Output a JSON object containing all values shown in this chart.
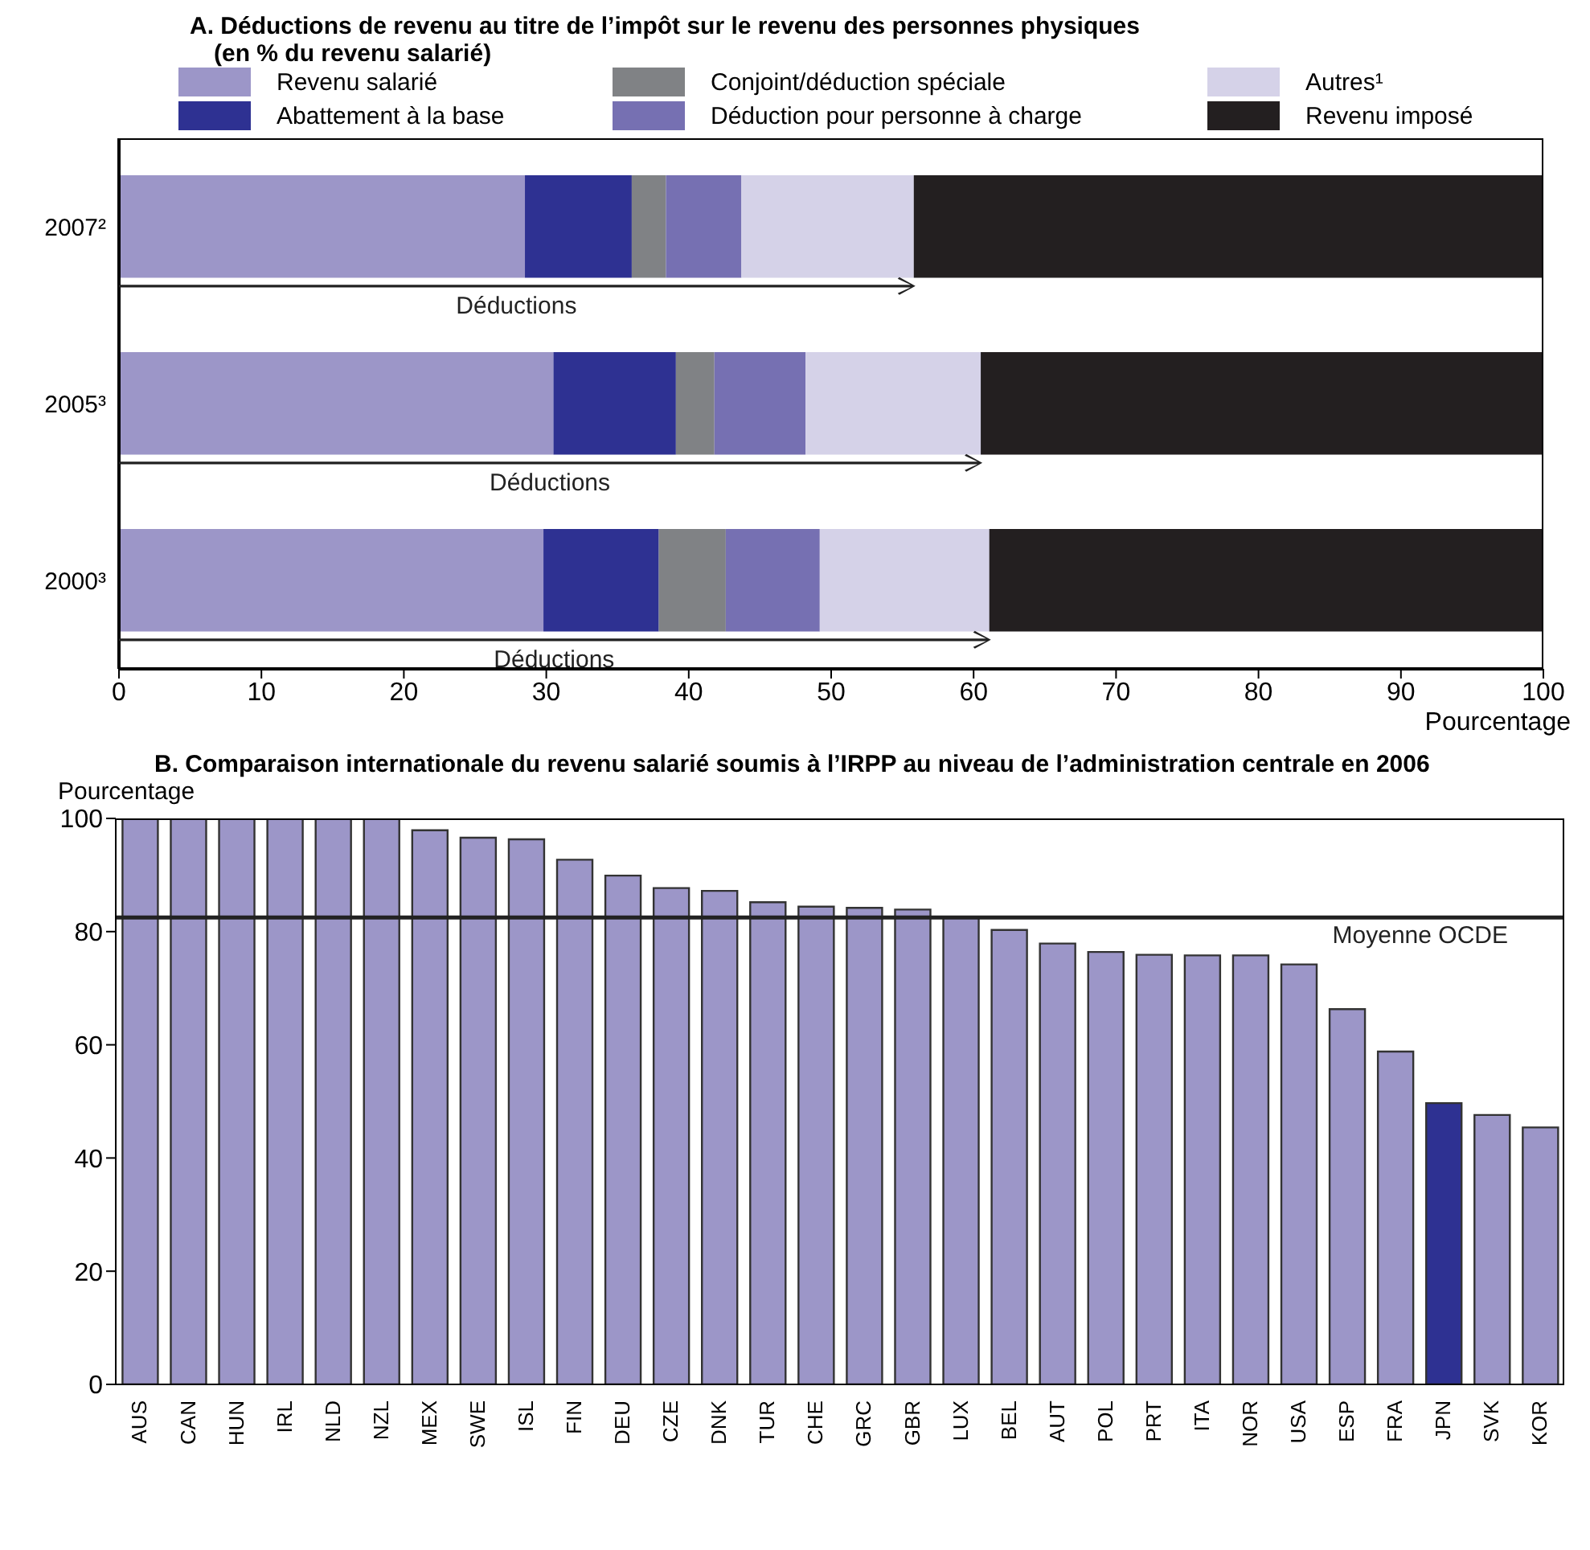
{
  "chart_data": [
    {
      "type": "bar",
      "orientation": "horizontal",
      "stacked": true,
      "title": "A. Déductions de revenu au titre de l’impôt sur le revenu des personnes physiques",
      "subtitle": "(en % du revenu salarié)",
      "categories": [
        "2007²",
        "2005³",
        "2000³"
      ],
      "series": [
        {
          "name": "Revenu salarié",
          "color": "#9c96c8",
          "values": [
            28.5,
            30.5,
            29.8
          ]
        },
        {
          "name": "Abattement à la base",
          "color": "#2e3192",
          "values": [
            7.5,
            8.6,
            8.1
          ]
        },
        {
          "name": "Conjoint/déduction spéciale",
          "color": "#808285",
          "values": [
            2.4,
            2.7,
            4.7
          ]
        },
        {
          "name": "Déduction pour personne à charge",
          "color": "#7670b2",
          "values": [
            5.3,
            6.4,
            6.6
          ]
        },
        {
          "name": "Autres¹",
          "color": "#d5d2e8",
          "values": [
            12.1,
            12.3,
            11.9
          ]
        },
        {
          "name": "Revenu imposé",
          "color": "#231f20",
          "values": [
            44.2,
            39.5,
            38.9
          ]
        }
      ],
      "xlim": [
        0,
        100
      ],
      "xticks": [
        0,
        10,
        20,
        30,
        40,
        50,
        60,
        70,
        80,
        90,
        100
      ],
      "xlabel": "Pourcentage",
      "legend": "top",
      "annotations": [
        "Déductions",
        "Déductions",
        "Déductions"
      ]
    },
    {
      "type": "bar",
      "title": "B. Comparaison internationale du revenu salarié soumis à l’IRPP au niveau de l’administration centrale en 2006",
      "ylabel": "Pourcentage",
      "categories": [
        "AUS",
        "CAN",
        "HUN",
        "IRL",
        "NLD",
        "NZL",
        "MEX",
        "SWE",
        "ISL",
        "FIN",
        "DEU",
        "CZE",
        "DNK",
        "TUR",
        "CHE",
        "GRC",
        "GBR",
        "LUX",
        "BEL",
        "AUT",
        "POL",
        "PRT",
        "ITA",
        "NOR",
        "USA",
        "ESP",
        "FRA",
        "JPN",
        "SVK",
        "KOR"
      ],
      "values": [
        100,
        100,
        100,
        100,
        100,
        100,
        97.9,
        96.6,
        96.3,
        92.7,
        89.9,
        87.7,
        87.2,
        85.2,
        84.4,
        84.2,
        83.9,
        82.5,
        80.3,
        77.9,
        76.4,
        75.9,
        75.8,
        75.8,
        74.2,
        66.3,
        58.8,
        49.7,
        47.6,
        45.4
      ],
      "colors": [
        "#9c96c8",
        "#9c96c8",
        "#9c96c8",
        "#9c96c8",
        "#9c96c8",
        "#9c96c8",
        "#9c96c8",
        "#9c96c8",
        "#9c96c8",
        "#9c96c8",
        "#9c96c8",
        "#9c96c8",
        "#9c96c8",
        "#9c96c8",
        "#9c96c8",
        "#9c96c8",
        "#9c96c8",
        "#9c96c8",
        "#9c96c8",
        "#9c96c8",
        "#9c96c8",
        "#9c96c8",
        "#9c96c8",
        "#9c96c8",
        "#9c96c8",
        "#9c96c8",
        "#9c96c8",
        "#2e3192",
        "#9c96c8",
        "#9c96c8"
      ],
      "ylim": [
        0,
        100
      ],
      "yticks": [
        0,
        20,
        40,
        60,
        80,
        100
      ],
      "ref_lines": [
        {
          "axis": "y",
          "value": 82.5,
          "label": "Moyenne OCDE"
        }
      ]
    }
  ]
}
